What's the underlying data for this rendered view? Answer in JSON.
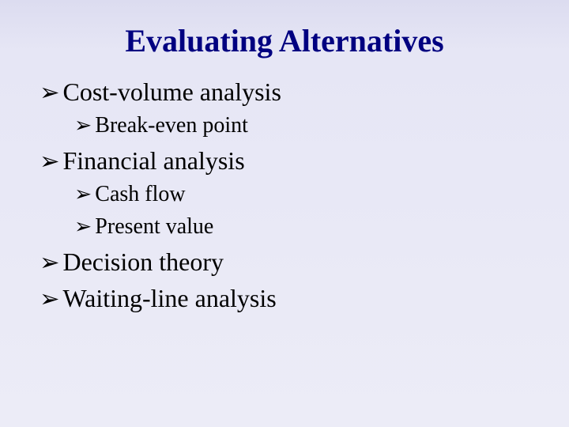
{
  "slide": {
    "title": "Evaluating Alternatives",
    "title_color": "#000080",
    "body_color": "#000000",
    "background_gradient": [
      "#dcdcf0",
      "#ececf7"
    ],
    "bullet_glyph": "➢",
    "title_fontsize": 40,
    "l1_fontsize": 32,
    "l2_fontsize": 28,
    "items": [
      {
        "level": 1,
        "text": "Cost-volume analysis"
      },
      {
        "level": 2,
        "text": "Break-even point"
      },
      {
        "level": 1,
        "text": "Financial analysis"
      },
      {
        "level": 2,
        "text": "Cash flow"
      },
      {
        "level": 2,
        "text": "Present value"
      },
      {
        "level": 1,
        "text": "Decision theory"
      },
      {
        "level": 1,
        "text": "Waiting-line analysis"
      }
    ]
  }
}
